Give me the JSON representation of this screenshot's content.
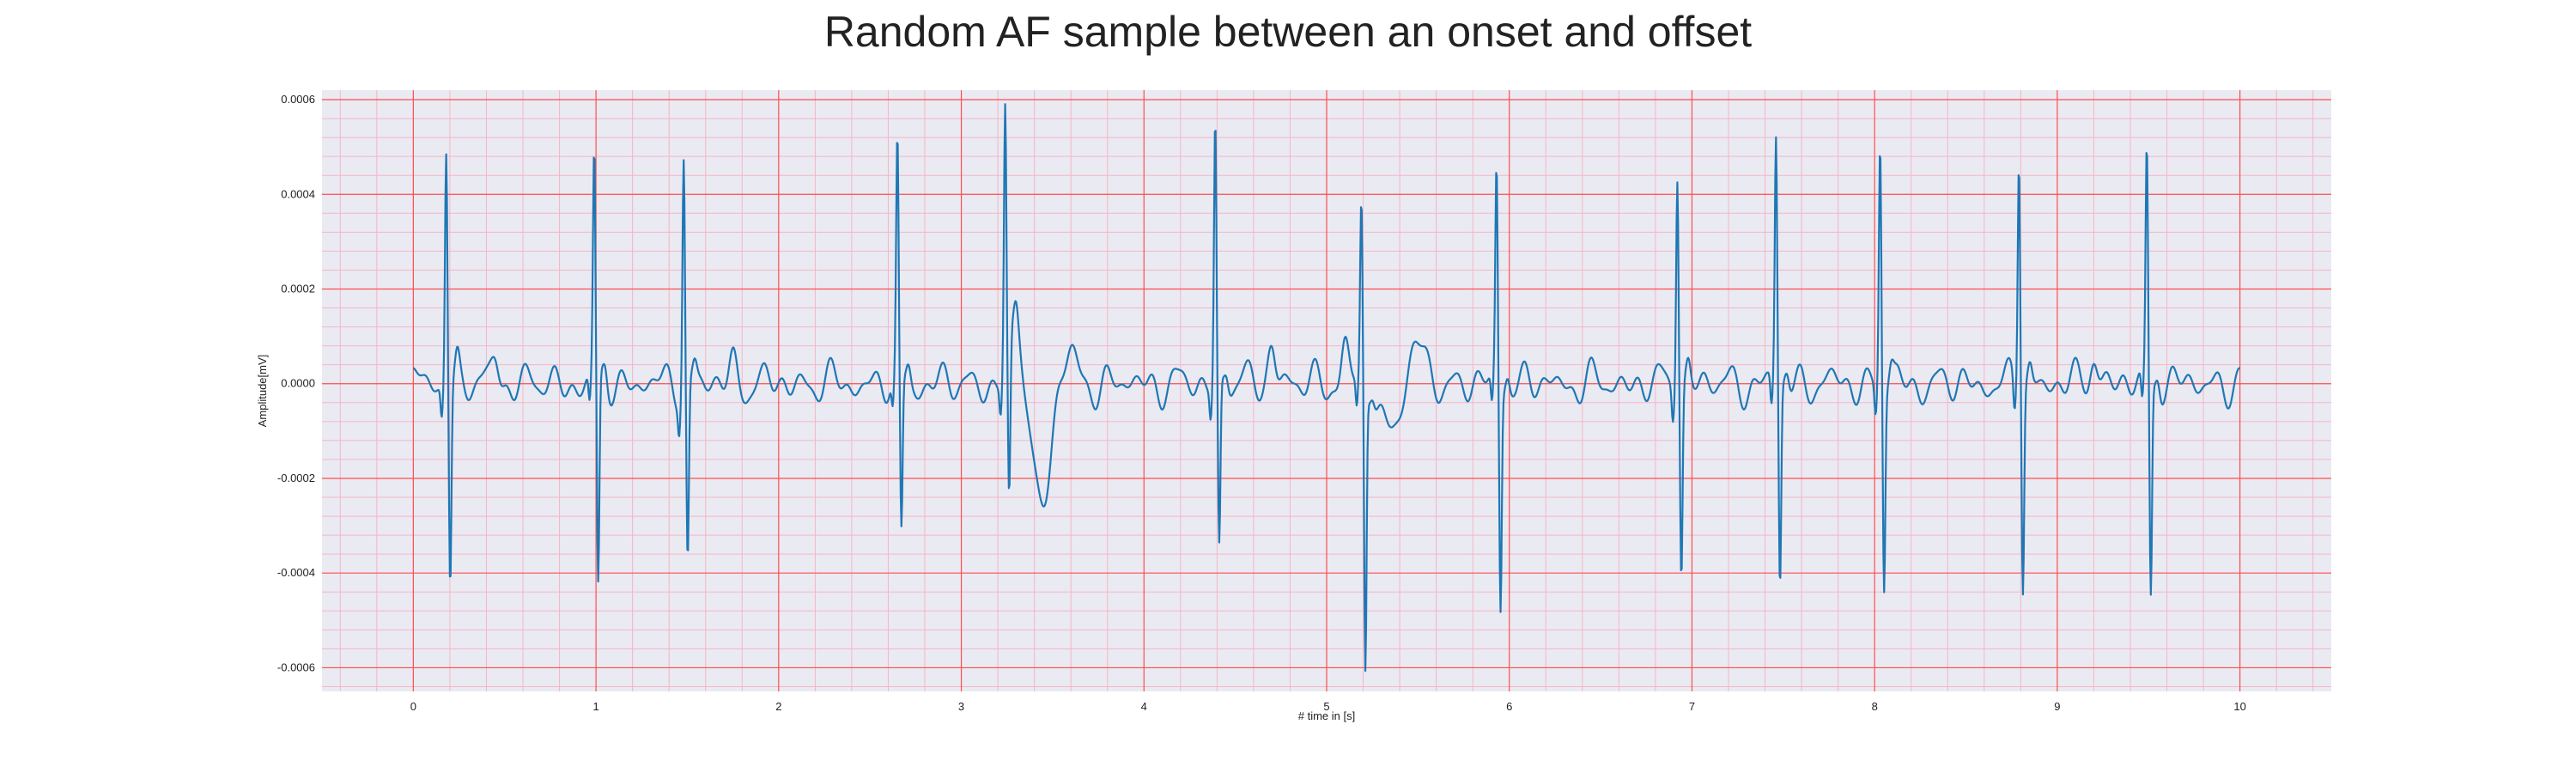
{
  "chart_data": {
    "type": "line",
    "title": "Random AF sample between an onset and offset",
    "xlabel": "# time in [s]",
    "ylabel": "Amplitude[mV]",
    "xlim": [
      -0.5,
      10.5
    ],
    "ylim": [
      -0.00065,
      0.00062
    ],
    "x_ticks": [
      0,
      1,
      2,
      3,
      4,
      5,
      6,
      7,
      8,
      9,
      10
    ],
    "x_tick_labels": [
      "0",
      "1",
      "2",
      "3",
      "4",
      "5",
      "6",
      "7",
      "8",
      "9",
      "10"
    ],
    "y_ticks": [
      0.0006,
      0.0004,
      0.0002,
      0.0,
      -0.0002,
      -0.0004,
      -0.0006
    ],
    "y_tick_labels": [
      "0.0006",
      "0.0004",
      "0.0002",
      "0.0000",
      "-0.0002",
      "-0.0004",
      "-0.0006"
    ],
    "grid": true,
    "legend": "none",
    "x_range": [
      0,
      10
    ],
    "sampling_step_s": 0.004,
    "baseline_oscillations": [
      {
        "amplitude": 2.2e-05,
        "frequency_hz": 5.3,
        "phase": 0.3
      },
      {
        "amplitude": 1.6e-05,
        "frequency_hz": 7.9,
        "phase": 1.7
      },
      {
        "amplitude": 1.2e-05,
        "frequency_hz": 11.3,
        "phase": 2.9
      },
      {
        "amplitude": 1e-05,
        "frequency_hz": 3.1,
        "phase": 0.9
      }
    ],
    "beats": [
      {
        "t": 0.18,
        "r": 0.00051,
        "s": -0.00041
      },
      {
        "t": 0.99,
        "r": 0.00047,
        "s": -0.00045
      },
      {
        "t": 1.48,
        "r": 0.00049,
        "s": -0.00038
      },
      {
        "t": 2.65,
        "r": 0.00049,
        "s": -0.00033
      },
      {
        "t": 3.24,
        "r": 0.00056,
        "s": -0.00032
      },
      {
        "t": 4.39,
        "r": 0.00055,
        "s": -0.00036
      },
      {
        "t": 5.19,
        "r": 0.00037,
        "s": -0.0006
      },
      {
        "t": 5.93,
        "r": 0.00045,
        "s": -0.00047
      },
      {
        "t": 6.92,
        "r": 0.00047,
        "s": -0.00039
      },
      {
        "t": 7.46,
        "r": 0.00052,
        "s": -0.00043
      },
      {
        "t": 8.03,
        "r": 0.00052,
        "s": -0.00042
      },
      {
        "t": 8.79,
        "r": 0.0005,
        "s": -0.00042
      },
      {
        "t": 9.49,
        "r": 0.00049,
        "s": -0.00045
      }
    ],
    "waves": [
      {
        "t": 0.45,
        "amplitude": 6e-05,
        "width_s": 0.02
      },
      {
        "t": 1.75,
        "amplitude": 4e-05,
        "width_s": 0.02
      },
      {
        "t": 3.3,
        "amplitude": 0.00013,
        "width_s": 0.025
      },
      {
        "t": 3.44,
        "amplitude": -0.00028,
        "width_s": 0.04
      },
      {
        "t": 3.6,
        "amplitude": 6e-05,
        "width_s": 0.03
      },
      {
        "t": 4.7,
        "amplitude": 9e-05,
        "width_s": 0.02
      },
      {
        "t": 5.1,
        "amplitude": 9e-05,
        "width_s": 0.02
      },
      {
        "t": 5.33,
        "amplitude": -9e-05,
        "width_s": 0.06
      },
      {
        "t": 5.5,
        "amplitude": 8e-05,
        "width_s": 0.04
      },
      {
        "t": 9.2,
        "amplitude": 7e-05,
        "width_s": 0.02
      }
    ],
    "series": [
      {
        "color": "#1f77b4"
      }
    ]
  },
  "style": {
    "plot_background": "#eaeaf2",
    "major_grid_color": "#ff4d4d",
    "minor_grid_color": "#f4b6c4",
    "line_color": "#1f77b4"
  }
}
